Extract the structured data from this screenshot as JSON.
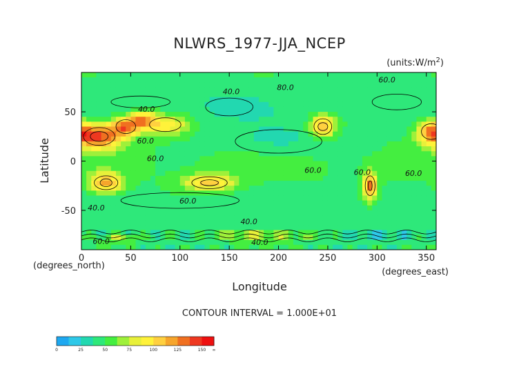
{
  "chart_data": {
    "type": "heatmap",
    "title": "NLWRS_1977-JJA_NCEP",
    "units": "(units:W/m^2)",
    "xlabel": "Longitude",
    "ylabel": "Latitude",
    "x_unit_label": "(degrees_east)",
    "y_unit_label": "(degrees_north)",
    "xlim": [
      0,
      360
    ],
    "ylim": [
      -90,
      90
    ],
    "x_ticks": [
      0,
      50,
      100,
      150,
      200,
      250,
      300,
      350
    ],
    "y_ticks": [
      50,
      0,
      -50
    ],
    "contour_interval_text": "CONTOUR INTERVAL = 1.000E+01",
    "contour_labels": [
      "60.0",
      "40.0",
      "80.0",
      "40.0",
      "60.0",
      "60.0",
      "60.0",
      "40.0",
      "60.0",
      "40.0",
      "60.0",
      "60.0",
      "60.0",
      "40.0"
    ],
    "colorbar": {
      "ticks": [
        "0",
        "25",
        "50",
        "75",
        "100",
        "125",
        "150",
        "∞"
      ],
      "colors": [
        "#1ea8f0",
        "#2ec8e8",
        "#22d8b0",
        "#2ee87a",
        "#44ee40",
        "#9ef03a",
        "#e8f03a",
        "#fff23a",
        "#ffd040",
        "#f6a52c",
        "#f07020",
        "#ee3820",
        "#ee1010"
      ]
    },
    "grid": false
  }
}
